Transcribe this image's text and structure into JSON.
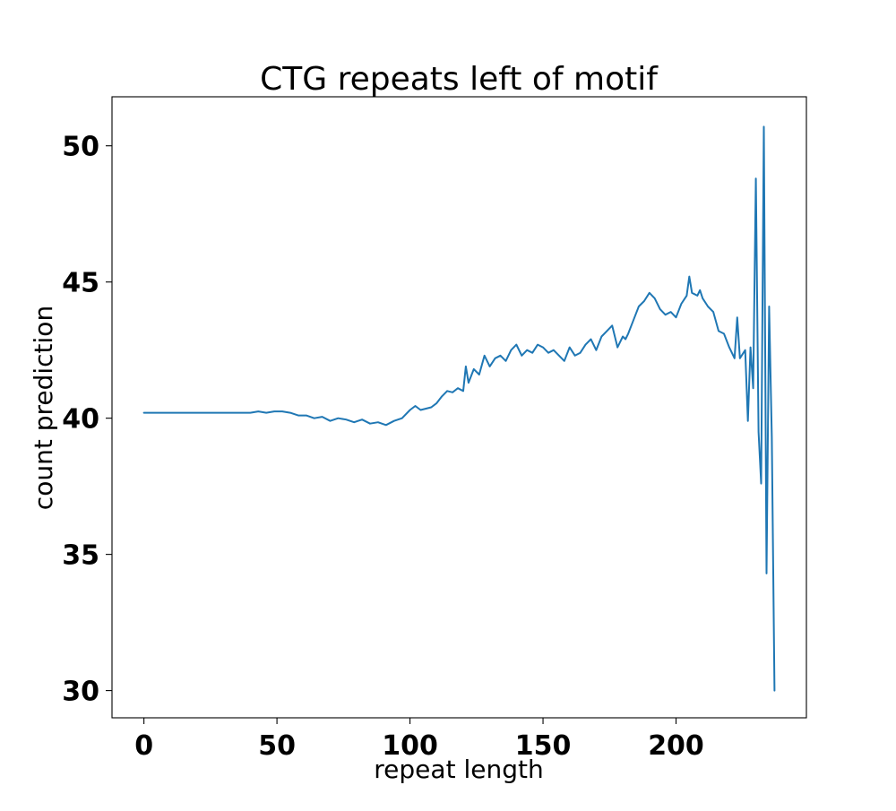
{
  "chart_data": {
    "type": "line",
    "title": "CTG repeats left of motif",
    "xlabel": "repeat length",
    "ylabel": "count prediction",
    "xlim": [
      -12,
      249
    ],
    "ylim": [
      29.0,
      51.8
    ],
    "xticks": [
      0,
      50,
      100,
      150,
      200
    ],
    "xtick_labels": [
      "0",
      "50",
      "100",
      "150",
      "200"
    ],
    "yticks": [
      30,
      35,
      40,
      45,
      50
    ],
    "ytick_labels": [
      "30",
      "35",
      "40",
      "45",
      "50"
    ],
    "grid": false,
    "legend": "none",
    "series": [
      {
        "color": "#1f77b4",
        "x": [
          0,
          10,
          20,
          30,
          40,
          43,
          46,
          49,
          52,
          55,
          58,
          61,
          64,
          67,
          70,
          73,
          76,
          79,
          82,
          85,
          88,
          91,
          94,
          97,
          100,
          102,
          104,
          106,
          108,
          110,
          112,
          114,
          116,
          118,
          120,
          121,
          122,
          124,
          126,
          128,
          130,
          132,
          134,
          136,
          138,
          140,
          142,
          144,
          146,
          148,
          150,
          152,
          154,
          156,
          158,
          160,
          162,
          164,
          166,
          168,
          170,
          172,
          174,
          176,
          178,
          180,
          181,
          182,
          184,
          186,
          188,
          190,
          192,
          194,
          196,
          198,
          200,
          202,
          204,
          205,
          206,
          208,
          209,
          210,
          212,
          214,
          216,
          218,
          220,
          222,
          223,
          224,
          226,
          227,
          228,
          229,
          230,
          231,
          232,
          233,
          234,
          235,
          236,
          237
        ],
        "y": [
          40.2,
          40.2,
          40.2,
          40.2,
          40.2,
          40.25,
          40.2,
          40.25,
          40.25,
          40.2,
          40.1,
          40.1,
          40.0,
          40.05,
          39.9,
          40.0,
          39.95,
          39.85,
          39.95,
          39.8,
          39.85,
          39.75,
          39.9,
          40.0,
          40.3,
          40.45,
          40.3,
          40.35,
          40.4,
          40.55,
          40.8,
          41.0,
          40.95,
          41.1,
          41.0,
          41.9,
          41.3,
          41.8,
          41.6,
          42.3,
          41.9,
          42.2,
          42.3,
          42.1,
          42.5,
          42.7,
          42.3,
          42.5,
          42.4,
          42.7,
          42.6,
          42.4,
          42.5,
          42.3,
          42.1,
          42.6,
          42.3,
          42.4,
          42.7,
          42.9,
          42.5,
          43.0,
          43.2,
          43.4,
          42.6,
          43.0,
          42.9,
          43.1,
          43.6,
          44.1,
          44.3,
          44.6,
          44.4,
          44.0,
          43.8,
          43.9,
          43.7,
          44.2,
          44.5,
          45.2,
          44.6,
          44.5,
          44.7,
          44.4,
          44.1,
          43.9,
          43.2,
          43.1,
          42.6,
          42.2,
          43.7,
          42.2,
          42.5,
          39.9,
          42.6,
          41.1,
          48.8,
          39.5,
          37.6,
          50.7,
          34.3,
          44.1,
          39.3,
          30.0
        ]
      }
    ]
  }
}
